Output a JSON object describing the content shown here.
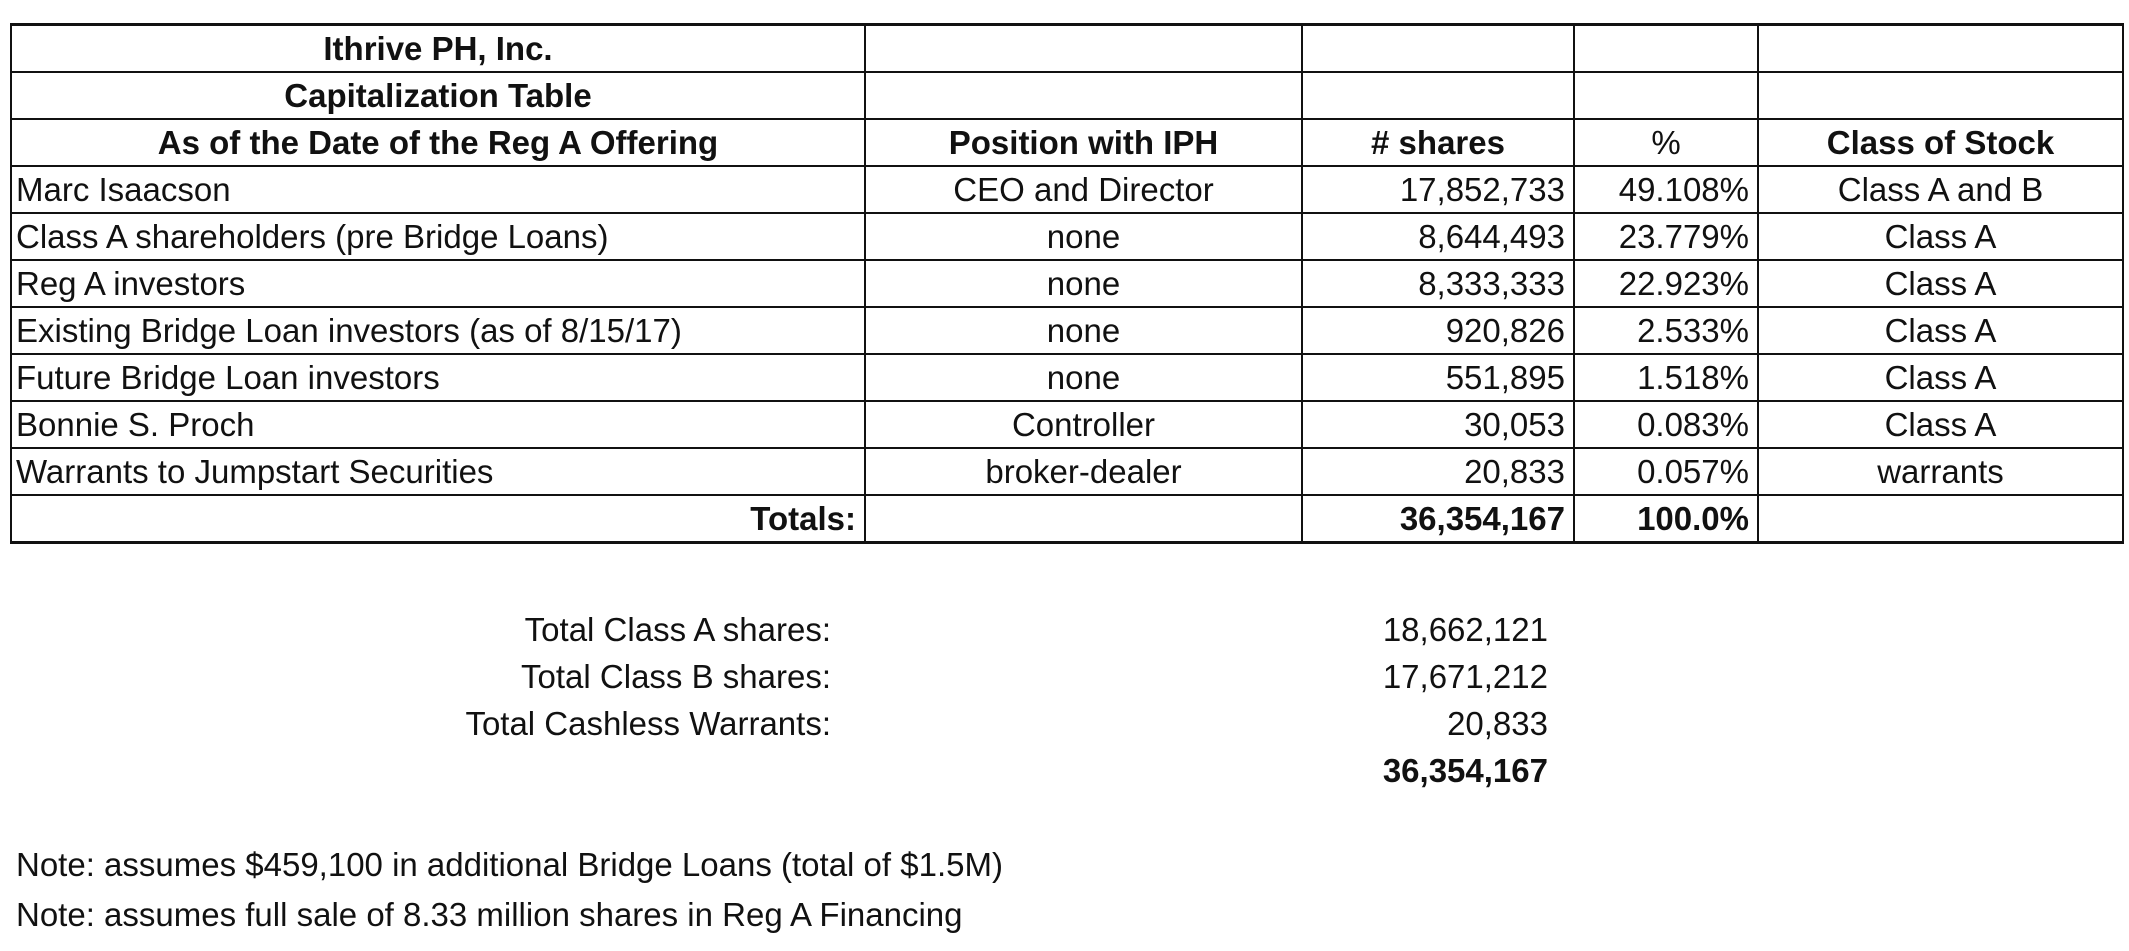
{
  "title_rows": [
    "Ithrive PH, Inc.",
    "Capitalization Table"
  ],
  "headers": {
    "name": "As of the Date of the Reg A Offering",
    "position": "Position with IPH",
    "shares": "# shares",
    "percent": "%",
    "class": "Class of Stock"
  },
  "rows": [
    {
      "name": "Marc Isaacson",
      "position": "CEO and Director",
      "shares": "17,852,733",
      "percent": "49.108%",
      "class": "Class A and B"
    },
    {
      "name": "Class A shareholders (pre Bridge Loans)",
      "position": "none",
      "shares": "8,644,493",
      "percent": "23.779%",
      "class": "Class A"
    },
    {
      "name": "Reg A investors",
      "position": "none",
      "shares": "8,333,333",
      "percent": "22.923%",
      "class": "Class A"
    },
    {
      "name": "Existing Bridge Loan investors (as of 8/15/17)",
      "position": "none",
      "shares": "920,826",
      "percent": "2.533%",
      "class": "Class A"
    },
    {
      "name": "Future Bridge Loan investors",
      "position": "none",
      "shares": "551,895",
      "percent": "1.518%",
      "class": "Class A"
    },
    {
      "name": "Bonnie S. Proch",
      "position": "Controller",
      "shares": "30,053",
      "percent": "0.083%",
      "class": "Class A"
    },
    {
      "name": "Warrants to Jumpstart Securities",
      "position": "broker-dealer",
      "shares": "20,833",
      "percent": "0.057%",
      "class": "warrants"
    }
  ],
  "totals": {
    "label": "Totals:",
    "shares": "36,354,167",
    "percent": "100.0%"
  },
  "summary": [
    {
      "label": "Total Class A shares:",
      "value": "18,662,121"
    },
    {
      "label": "Total Class B shares:",
      "value": "17,671,212"
    },
    {
      "label": "Total Cashless Warrants:",
      "value": "20,833"
    },
    {
      "label": "",
      "value": "36,354,167"
    }
  ],
  "notes": [
    "Note:  assumes $459,100 in additional Bridge Loans (total of $1.5M)",
    "Note:  assumes full sale of 8.33 million shares in Reg A Financing"
  ]
}
